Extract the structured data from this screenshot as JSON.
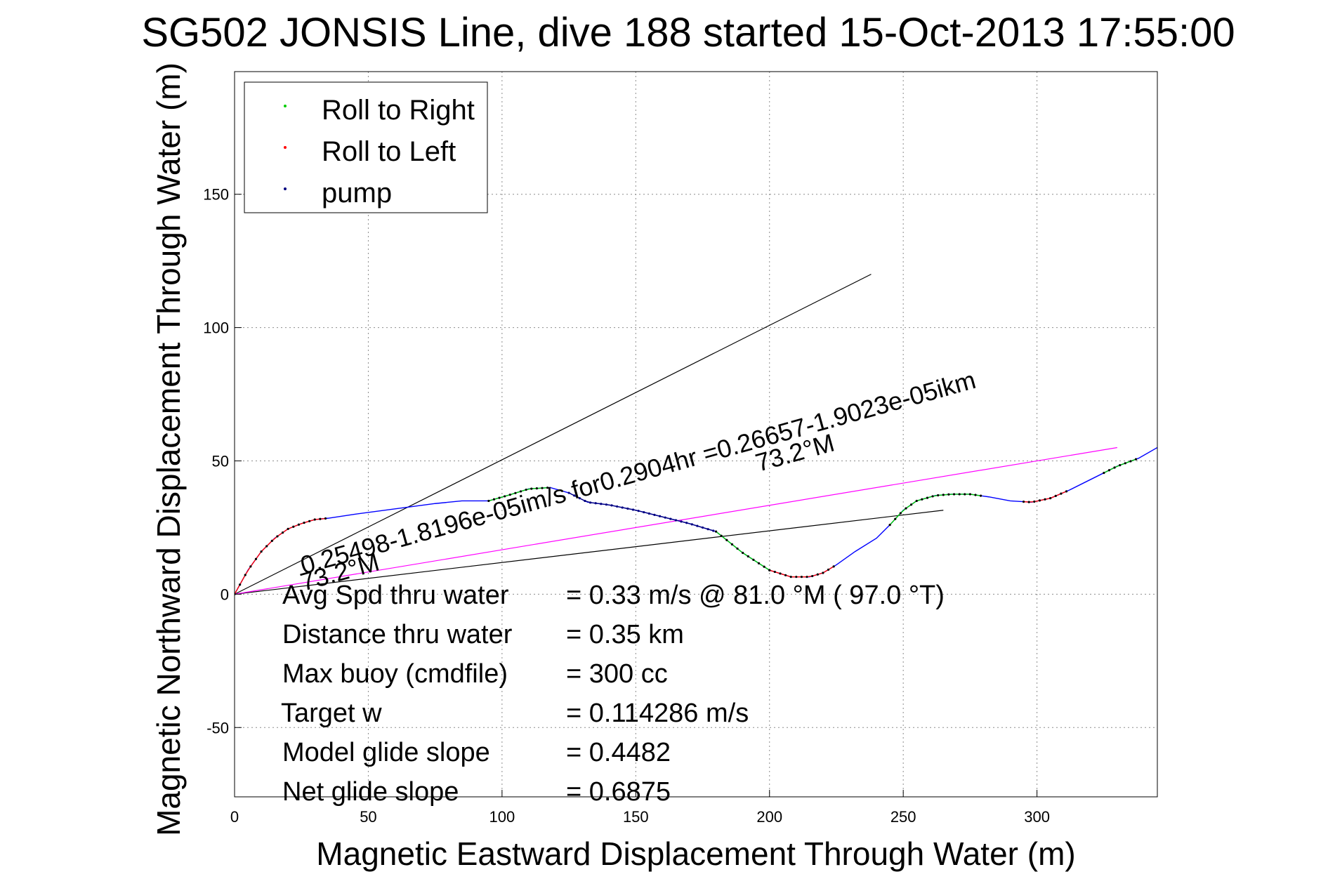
{
  "chart_data": {
    "type": "line",
    "title": "SG502 JONSIS Line, dive 188 started 15-Oct-2013 17:55:00",
    "xlabel": "Magnetic Eastward Displacement Through Water (m)",
    "ylabel": "Magnetic Northward Displacement Through Water (m)",
    "xlim": [
      0,
      345
    ],
    "ylim": [
      -76,
      196
    ],
    "xticks": [
      0,
      50,
      100,
      150,
      200,
      250,
      300
    ],
    "yticks": [
      -50,
      0,
      50,
      100,
      150
    ],
    "grid": true,
    "legend_position": "top-left",
    "legend": [
      {
        "label": "Roll to Right",
        "color": "#00cc00"
      },
      {
        "label": "Roll to Left",
        "color": "#ff0000"
      },
      {
        "label": "pump",
        "color": "#000080"
      }
    ],
    "track": {
      "color": "#0000ff",
      "x": [
        0,
        5,
        10,
        15,
        20,
        25,
        30,
        35,
        45,
        60,
        75,
        85,
        95,
        102,
        110,
        118,
        125,
        132,
        140,
        150,
        160,
        170,
        180,
        190,
        200,
        208,
        215,
        220,
        225,
        232,
        240,
        245,
        250,
        255,
        262,
        268,
        275,
        282,
        290,
        298,
        305,
        312,
        320,
        330,
        338,
        345
      ],
      "y": [
        0,
        9,
        16,
        21,
        24.5,
        26.5,
        28,
        28.5,
        30,
        32,
        34,
        35,
        35,
        37,
        39.5,
        40,
        38,
        34.5,
        33.5,
        31.5,
        29,
        26.5,
        23.5,
        15.5,
        9,
        6.5,
        6.5,
        8,
        11,
        16,
        21,
        26,
        31.5,
        35,
        37,
        37.5,
        37.5,
        36.5,
        35,
        34.5,
        36,
        39,
        43,
        48,
        51,
        55
      ]
    },
    "segments": [
      {
        "name": "Roll to Left",
        "color": "#ff0000",
        "from_x": 0,
        "to_x": 35
      },
      {
        "name": "Roll to Right",
        "color": "#00cc00",
        "from_x": 95,
        "to_x": 118
      },
      {
        "name": "pump",
        "color": "#000080",
        "from_x": 125,
        "to_x": 180
      },
      {
        "name": "Roll to Right",
        "color": "#00cc00",
        "from_x": 180,
        "to_x": 200
      },
      {
        "name": "Roll to Left",
        "color": "#ff0000",
        "from_x": 200,
        "to_x": 225
      },
      {
        "name": "Roll to Right",
        "color": "#00cc00",
        "from_x": 245,
        "to_x": 280
      },
      {
        "name": "Roll to Left",
        "color": "#ff0000",
        "from_x": 295,
        "to_x": 312
      },
      {
        "name": "Roll to Right",
        "color": "#00cc00",
        "from_x": 325,
        "to_x": 338
      }
    ],
    "reference_lines": [
      {
        "color": "#000000",
        "x": [
          0,
          238
        ],
        "y": [
          0,
          120
        ]
      },
      {
        "color": "#000000",
        "x": [
          0,
          265
        ],
        "y": [
          0,
          31.5
        ]
      },
      {
        "color": "#ff00ff",
        "x": [
          0,
          330
        ],
        "y": [
          0,
          55
        ]
      }
    ],
    "rotated_labels": {
      "line1": "0.25498-1.8196e-05im/s for0.2904hr =0.26657-1.9023e-05ikm",
      "heading_a": "73.2°M",
      "heading_b": "73.2°M"
    },
    "annotations": [
      {
        "label": "Avg Spd thru water",
        "value": "=  0.33 m/s @  81.0 °M ( 97.0 °T)"
      },
      {
        "label": "Distance thru water",
        "value": "=  0.35 km"
      },
      {
        "label": "Max buoy (cmdfile)",
        "value": "= 300 cc"
      },
      {
        "label": "Target w",
        "value": "= 0.114286 m/s"
      },
      {
        "label": "Model glide slope",
        "value": "= 0.4482"
      },
      {
        "label": "Net glide slope",
        "value": "= 0.6875"
      }
    ]
  }
}
